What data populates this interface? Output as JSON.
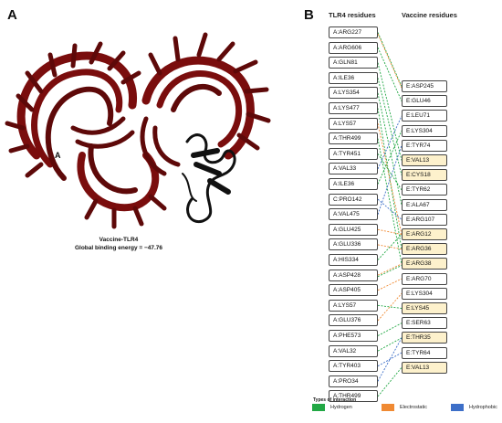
{
  "panel_a": {
    "label": "A",
    "chain_label": "A",
    "caption_line1": "Vaccine-TLR4",
    "caption_line2": "Global binding energy = −47.76",
    "colors": {
      "tlr4": "#7a0d0d",
      "vaccine": "#111111"
    }
  },
  "panel_b": {
    "label": "B",
    "col_tlr4": "TLR4 residues",
    "col_vaccine": "Vaccine residues",
    "tlr4_residues": [
      "A:ARG227",
      "A:ARG606",
      "A:GLN81",
      "A:ILE36",
      "A:LYS354",
      "A:LYS477",
      "A:LYS57",
      "A:THR499",
      "A:TYR451",
      "A:VAL33",
      "A:ILE36",
      "C:PRO142",
      "A:VAL475",
      "A:GLU425",
      "A:GLU336",
      "A:HIS334",
      "A:ASP428",
      "A:ASP405",
      "A:LYS57",
      "A:GLU376",
      "A:PHE573",
      "A:VAL32",
      "A:TYR403",
      "A:PRO34",
      "A:THR499"
    ],
    "vaccine_residues": [
      {
        "label": "E:ASP245",
        "highlight": false
      },
      {
        "label": "E:GLU46",
        "highlight": false
      },
      {
        "label": "E:LEU71",
        "highlight": false
      },
      {
        "label": "E:LYS304",
        "highlight": false
      },
      {
        "label": "E:TYR74",
        "highlight": false
      },
      {
        "label": "E:VAL13",
        "highlight": true
      },
      {
        "label": "E:CYS18",
        "highlight": true
      },
      {
        "label": "E:TYR62",
        "highlight": false
      },
      {
        "label": "E:ALA67",
        "highlight": false
      },
      {
        "label": "E:ARG107",
        "highlight": false
      },
      {
        "label": "E:ARG12",
        "highlight": true
      },
      {
        "label": "E:ARG36",
        "highlight": true
      },
      {
        "label": "E:ARG38",
        "highlight": true
      },
      {
        "label": "E:ARG70",
        "highlight": false
      },
      {
        "label": "E:LYS304",
        "highlight": false
      },
      {
        "label": "E:LYS45",
        "highlight": true
      },
      {
        "label": "E:SER63",
        "highlight": false
      },
      {
        "label": "E:THR35",
        "highlight": true
      },
      {
        "label": "E:TYR64",
        "highlight": false
      },
      {
        "label": "E:VAL13",
        "highlight": true
      }
    ],
    "interactions": [
      {
        "tlr4": 0,
        "vaccine": 0,
        "type": "hydrogen"
      },
      {
        "tlr4": 0,
        "vaccine": 0,
        "type": "electrostatic"
      },
      {
        "tlr4": 1,
        "vaccine": 1,
        "type": "hydrogen"
      },
      {
        "tlr4": 2,
        "vaccine": 5,
        "type": "hydrogen"
      },
      {
        "tlr4": 3,
        "vaccine": 6,
        "type": "hydrogen"
      },
      {
        "tlr4": 4,
        "vaccine": 8,
        "type": "hydrogen"
      },
      {
        "tlr4": 5,
        "vaccine": 11,
        "type": "hydrogen"
      },
      {
        "tlr4": 6,
        "vaccine": 10,
        "type": "electrostatic"
      },
      {
        "tlr4": 7,
        "vaccine": 12,
        "type": "hydrogen"
      },
      {
        "tlr4": 8,
        "vaccine": 7,
        "type": "hydrogen"
      },
      {
        "tlr4": 9,
        "vaccine": 2,
        "type": "hydrophobic"
      },
      {
        "tlr4": 10,
        "vaccine": 3,
        "type": "hydrogen"
      },
      {
        "tlr4": 11,
        "vaccine": 9,
        "type": "hydrophobic"
      },
      {
        "tlr4": 12,
        "vaccine": 4,
        "type": "hydrophobic"
      },
      {
        "tlr4": 13,
        "vaccine": 10,
        "type": "electrostatic"
      },
      {
        "tlr4": 14,
        "vaccine": 11,
        "type": "electrostatic"
      },
      {
        "tlr4": 15,
        "vaccine": 10,
        "type": "hydrogen"
      },
      {
        "tlr4": 16,
        "vaccine": 12,
        "type": "electrostatic"
      },
      {
        "tlr4": 16,
        "vaccine": 12,
        "type": "hydrogen"
      },
      {
        "tlr4": 17,
        "vaccine": 13,
        "type": "electrostatic"
      },
      {
        "tlr4": 18,
        "vaccine": 15,
        "type": "hydrogen"
      },
      {
        "tlr4": 19,
        "vaccine": 14,
        "type": "electrostatic"
      },
      {
        "tlr4": 20,
        "vaccine": 16,
        "type": "hydrogen"
      },
      {
        "tlr4": 21,
        "vaccine": 17,
        "type": "hydrogen"
      },
      {
        "tlr4": 22,
        "vaccine": 18,
        "type": "hydrophobic"
      },
      {
        "tlr4": 23,
        "vaccine": 17,
        "type": "hydrophobic"
      },
      {
        "tlr4": 24,
        "vaccine": 19,
        "type": "hydrogen"
      }
    ],
    "legend": {
      "title": "Types of interaction",
      "items": [
        {
          "key": "hydrogen",
          "label": "Hydrogen",
          "color": "#22a845"
        },
        {
          "key": "electrostatic",
          "label": "Electrostatic",
          "color": "#f08a33"
        },
        {
          "key": "hydrophobic",
          "label": "Hydrophobic",
          "color": "#3d6fc8"
        }
      ]
    }
  }
}
